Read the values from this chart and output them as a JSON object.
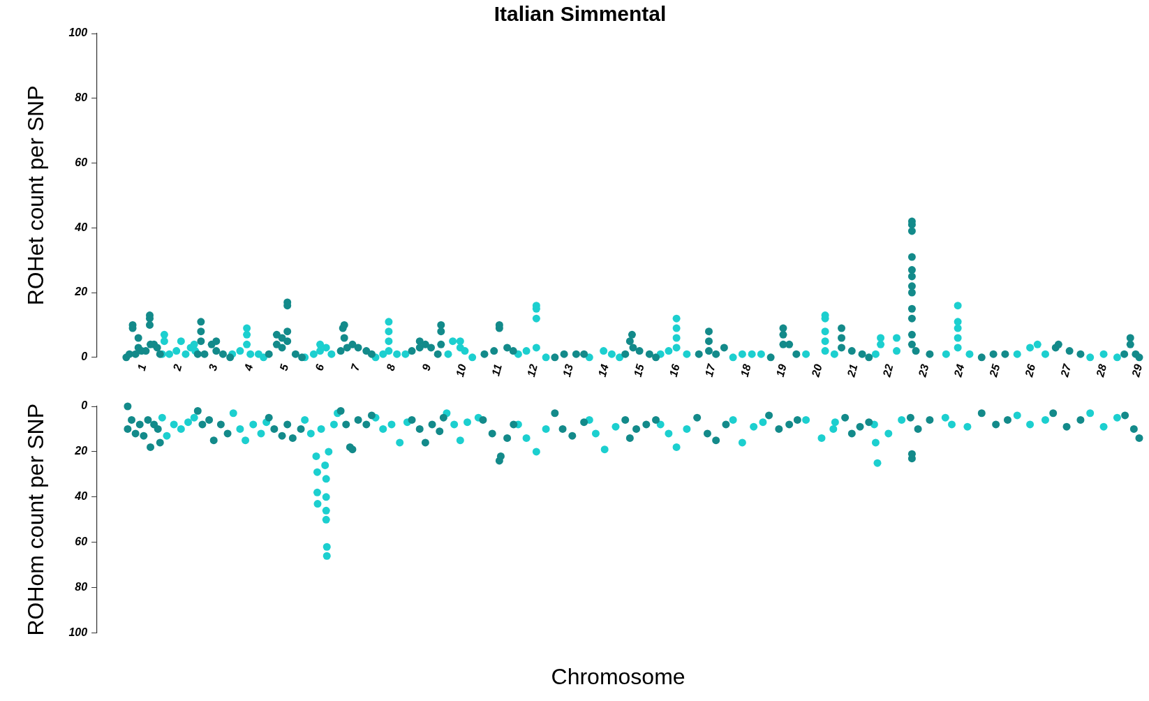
{
  "chart_data": [
    {
      "type": "scatter",
      "title": "Italian Simmental",
      "ylabel": "ROHet count per SNP",
      "xlim": [
        -0.3,
        29
      ],
      "ylim": [
        0,
        100
      ],
      "yticks": [
        0,
        20,
        40,
        60,
        80,
        100
      ],
      "xticks": [
        1,
        2,
        3,
        4,
        5,
        6,
        7,
        8,
        9,
        10,
        11,
        12,
        13,
        14,
        15,
        16,
        17,
        18,
        19,
        20,
        21,
        22,
        23,
        24,
        25,
        26,
        27,
        28,
        29
      ],
      "grid": false,
      "legend": false,
      "marker": "circle",
      "series": [
        {
          "color": "#138a8a",
          "x": [
            0.52,
            0.61,
            0.7,
            0.7,
            0.78,
            0.86,
            0.86,
            0.95,
            1.07,
            1.18,
            1.18,
            1.18,
            1.2,
            1.3,
            1.39,
            1.47,
            2.53,
            2.62,
            2.62,
            2.62,
            2.72,
            2.92,
            3.05,
            3.05,
            3.24,
            3.44,
            4.53,
            4.75,
            4.75,
            4.9,
            4.9,
            5.05,
            5.05,
            5.05,
            5.05,
            5.28,
            5.46,
            6.55,
            6.61,
            6.65,
            6.65,
            6.73,
            6.88,
            7.04,
            7.27,
            7.42,
            8.55,
            8.77,
            8.77,
            8.93,
            9.09,
            9.28,
            9.37,
            9.37,
            9.37,
            10.59,
            10.86,
            11.01,
            11.01,
            11.23,
            11.4,
            12.57,
            12.83,
            13.17,
            13.39,
            14.55,
            14.68,
            14.74,
            14.77,
            14.95,
            15.23,
            15.41,
            16.62,
            16.9,
            16.9,
            16.9,
            17.1,
            17.33,
            18.64,
            18.99,
            18.99,
            18.99,
            19.16,
            19.36,
            20.63,
            20.63,
            20.63,
            20.92,
            21.21,
            21.4,
            22.61,
            22.61,
            22.61,
            22.61,
            22.61,
            22.61,
            22.61,
            22.61,
            22.61,
            22.61,
            22.61,
            22.61,
            22.72,
            23.11,
            24.57,
            24.9,
            25.23,
            26.65,
            26.73,
            27.04,
            27.35,
            28.58,
            28.75,
            28.75,
            28.9,
            29.0
          ],
          "values": [
            0,
            1,
            10,
            9,
            1,
            6,
            3,
            2,
            2,
            13,
            12,
            10,
            4,
            4,
            3,
            1,
            1,
            11,
            8,
            5,
            1,
            4,
            5,
            2,
            1,
            0,
            1,
            7,
            4,
            6,
            3,
            17,
            16,
            8,
            5,
            1,
            0,
            2,
            9,
            10,
            6,
            3,
            4,
            3,
            2,
            1,
            2,
            5,
            3,
            4,
            3,
            1,
            10,
            8,
            4,
            1,
            2,
            10,
            9,
            3,
            2,
            0,
            1,
            1,
            1,
            1,
            5,
            7,
            3,
            2,
            1,
            0,
            1,
            8,
            5,
            2,
            1,
            3,
            0,
            9,
            7,
            4,
            4,
            1,
            9,
            6,
            3,
            2,
            1,
            0,
            42,
            41,
            39,
            31,
            27,
            25,
            22,
            20,
            15,
            12,
            7,
            4,
            2,
            1,
            0,
            1,
            1,
            3,
            4,
            2,
            1,
            1,
            6,
            4,
            1,
            0
          ]
        },
        {
          "color": "#1ccfcf",
          "x": [
            1.53,
            1.59,
            1.59,
            1.73,
            1.93,
            2.06,
            2.19,
            2.33,
            2.43,
            2.46,
            3.5,
            3.72,
            3.91,
            3.91,
            3.91,
            4.01,
            4.24,
            4.38,
            5.54,
            5.79,
            5.97,
            5.97,
            6.14,
            6.29,
            7.53,
            7.74,
            7.9,
            7.9,
            7.9,
            7.9,
            8.13,
            8.37,
            9.57,
            9.7,
            9.91,
            9.91,
            10.04,
            10.25,
            11.54,
            11.77,
            12.05,
            12.05,
            12.05,
            12.05,
            12.32,
            13.54,
            13.94,
            14.17,
            14.39,
            15.54,
            15.77,
            15.99,
            15.99,
            15.99,
            15.99,
            16.28,
            17.58,
            17.84,
            18.11,
            18.37,
            19.63,
            20.17,
            20.17,
            20.17,
            20.17,
            20.17,
            20.43,
            21.59,
            21.73,
            21.73,
            22.18,
            22.18,
            23.57,
            23.9,
            23.9,
            23.9,
            23.9,
            23.9,
            24.23,
            25.57,
            25.93,
            26.14,
            26.36,
            27.62,
            28.0,
            28.38
          ],
          "values": [
            1,
            7,
            5,
            1,
            2,
            5,
            1,
            3,
            4,
            2,
            1,
            2,
            9,
            7,
            4,
            1,
            1,
            0,
            0,
            1,
            4,
            2,
            3,
            1,
            0,
            1,
            11,
            8,
            5,
            2,
            1,
            1,
            1,
            5,
            5,
            3,
            2,
            0,
            1,
            2,
            16,
            15,
            12,
            3,
            0,
            0,
            2,
            1,
            0,
            1,
            2,
            12,
            9,
            6,
            3,
            1,
            0,
            1,
            1,
            1,
            1,
            13,
            12,
            8,
            5,
            2,
            1,
            1,
            6,
            4,
            6,
            2,
            1,
            16,
            11,
            9,
            6,
            3,
            1,
            1,
            3,
            4,
            1,
            0,
            1,
            0
          ]
        }
      ]
    },
    {
      "type": "scatter",
      "ylabel": "ROHom count per SNP",
      "xlabel": "Chromosome",
      "xlim": [
        -0.3,
        29
      ],
      "ylim": [
        100,
        0
      ],
      "yticks": [
        0,
        20,
        40,
        60,
        80,
        100
      ],
      "xticks": [
        1,
        2,
        3,
        4,
        5,
        6,
        7,
        8,
        9,
        10,
        11,
        12,
        13,
        14,
        15,
        16,
        17,
        18,
        19,
        20,
        21,
        22,
        23,
        24,
        25,
        26,
        27,
        28,
        29
      ],
      "tick_labels": "y",
      "grid": false,
      "legend": false,
      "marker": "circle",
      "series": [
        {
          "color": "#138a8a",
          "x": [
            0.56,
            0.56,
            0.67,
            0.78,
            0.9,
            1.01,
            1.13,
            1.2,
            1.3,
            1.41,
            1.47,
            2.53,
            2.66,
            2.85,
            2.98,
            3.18,
            3.37,
            4.53,
            4.68,
            4.9,
            5.05,
            5.2,
            5.43,
            6.55,
            6.7,
            6.81,
            6.88,
            7.04,
            7.27,
            7.42,
            8.55,
            8.77,
            8.93,
            9.12,
            9.33,
            9.44,
            10.55,
            10.81,
            11.01,
            11.05,
            11.23,
            11.41,
            12.57,
            12.79,
            13.06,
            13.39,
            14.55,
            14.68,
            14.86,
            15.14,
            15.41,
            16.57,
            16.86,
            17.1,
            17.38,
            18.59,
            18.87,
            19.16,
            19.39,
            20.73,
            20.92,
            21.15,
            21.4,
            22.57,
            22.61,
            22.61,
            22.78,
            23.11,
            24.57,
            24.97,
            25.3,
            26.58,
            26.96,
            27.35,
            28.6,
            28.85,
            29.0
          ],
          "values": [
            0,
            10,
            6,
            12,
            8,
            13,
            6,
            18,
            8,
            10,
            16,
            2,
            8,
            6,
            15,
            8,
            12,
            5,
            10,
            13,
            8,
            14,
            10,
            2,
            8,
            18,
            19,
            6,
            8,
            4,
            6,
            10,
            16,
            8,
            11,
            5,
            6,
            12,
            24,
            22,
            14,
            8,
            3,
            10,
            13,
            7,
            6,
            14,
            10,
            8,
            6,
            5,
            12,
            15,
            8,
            4,
            10,
            8,
            6,
            5,
            12,
            9,
            7,
            5,
            23,
            21,
            10,
            6,
            3,
            8,
            6,
            3,
            9,
            6,
            4,
            10,
            14
          ]
        },
        {
          "color": "#1ccfcf",
          "x": [
            1.53,
            1.66,
            1.86,
            2.06,
            2.26,
            2.43,
            3.53,
            3.72,
            3.87,
            4.09,
            4.31,
            4.46,
            5.54,
            5.71,
            5.86,
            5.89,
            5.89,
            5.9,
            6.0,
            6.11,
            6.14,
            6.14,
            6.14,
            6.14,
            6.16,
            6.16,
            6.21,
            6.36,
            6.46,
            7.53,
            7.74,
            7.98,
            8.21,
            8.42,
            9.53,
            9.74,
            9.91,
            10.11,
            10.42,
            11.54,
            11.77,
            12.05,
            12.32,
            13.54,
            13.72,
            13.97,
            14.28,
            15.54,
            15.77,
            15.99,
            16.28,
            17.58,
            17.84,
            18.16,
            18.42,
            19.63,
            20.07,
            20.4,
            20.45,
            21.55,
            21.59,
            21.64,
            21.95,
            22.32,
            23.55,
            23.73,
            24.17,
            25.57,
            25.93,
            26.36,
            27.62,
            28.0,
            28.38
          ],
          "values": [
            5,
            13,
            8,
            10,
            7,
            5,
            3,
            10,
            15,
            8,
            12,
            7,
            6,
            12,
            22,
            29,
            38,
            43,
            10,
            26,
            32,
            40,
            46,
            50,
            62,
            66,
            20,
            8,
            3,
            5,
            10,
            8,
            16,
            7,
            3,
            8,
            15,
            7,
            5,
            8,
            14,
            20,
            10,
            6,
            12,
            19,
            9,
            8,
            12,
            18,
            10,
            6,
            16,
            9,
            7,
            6,
            14,
            10,
            7,
            8,
            16,
            25,
            12,
            6,
            5,
            8,
            9,
            4,
            8,
            6,
            3,
            9,
            5
          ]
        }
      ]
    }
  ]
}
